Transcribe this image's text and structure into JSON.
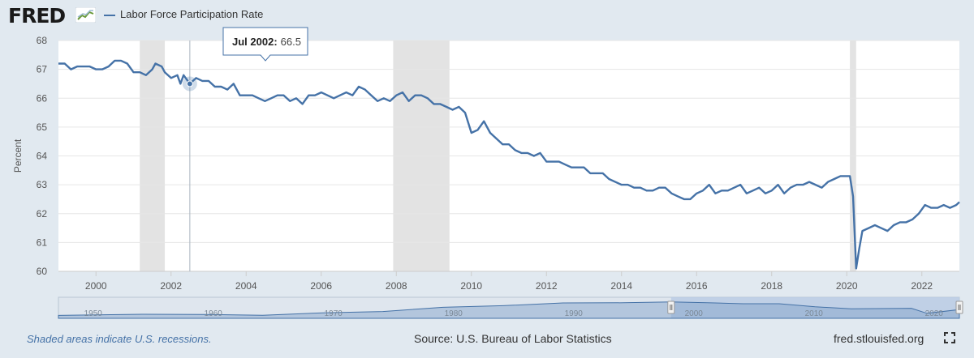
{
  "header": {
    "logo_text": "FRED",
    "legend_label": "Labor Force Participation Rate",
    "series_color": "#4572a7"
  },
  "tooltip": {
    "date": "Jul 2002:",
    "value": "66.5"
  },
  "footer": {
    "note": "Shaded areas indicate U.S. recessions.",
    "source": "Source: U.S. Bureau of Labor Statistics",
    "site": "fred.stlouisfed.org"
  },
  "chart_data": {
    "type": "line",
    "title": "",
    "xlabel": "",
    "ylabel": "Percent",
    "ylim": [
      60,
      68
    ],
    "xlim": [
      "1999-01",
      "2023-01"
    ],
    "yticks": [
      60,
      61,
      62,
      63,
      64,
      65,
      66,
      67,
      68
    ],
    "xticks": [
      "2000",
      "2002",
      "2004",
      "2006",
      "2008",
      "2010",
      "2012",
      "2014",
      "2016",
      "2018",
      "2020",
      "2022"
    ],
    "grid": "horizontal",
    "recessions": [
      [
        "2001-03",
        "2001-11"
      ],
      [
        "2007-12",
        "2009-06"
      ],
      [
        "2020-02",
        "2020-04"
      ]
    ],
    "highlight": {
      "x": "2002-07",
      "y": 66.5
    },
    "series": [
      {
        "name": "Labor Force Participation Rate",
        "color": "#4572a7",
        "points": [
          [
            "1999-01",
            67.2
          ],
          [
            "1999-03",
            67.2
          ],
          [
            "1999-05",
            67.0
          ],
          [
            "1999-07",
            67.1
          ],
          [
            "1999-09",
            67.1
          ],
          [
            "1999-11",
            67.1
          ],
          [
            "2000-01",
            67.0
          ],
          [
            "2000-03",
            67.0
          ],
          [
            "2000-05",
            67.1
          ],
          [
            "2000-07",
            67.3
          ],
          [
            "2000-09",
            67.3
          ],
          [
            "2000-11",
            67.2
          ],
          [
            "2001-01",
            66.9
          ],
          [
            "2001-03",
            66.9
          ],
          [
            "2001-05",
            66.8
          ],
          [
            "2001-07",
            67.0
          ],
          [
            "2001-08",
            67.2
          ],
          [
            "2001-10",
            67.1
          ],
          [
            "2001-11",
            66.9
          ],
          [
            "2002-01",
            66.7
          ],
          [
            "2002-03",
            66.8
          ],
          [
            "2002-04",
            66.5
          ],
          [
            "2002-05",
            66.8
          ],
          [
            "2002-07",
            66.5
          ],
          [
            "2002-09",
            66.7
          ],
          [
            "2002-11",
            66.6
          ],
          [
            "2003-01",
            66.6
          ],
          [
            "2003-03",
            66.4
          ],
          [
            "2003-05",
            66.4
          ],
          [
            "2003-07",
            66.3
          ],
          [
            "2003-09",
            66.5
          ],
          [
            "2003-11",
            66.1
          ],
          [
            "2004-01",
            66.1
          ],
          [
            "2004-03",
            66.1
          ],
          [
            "2004-05",
            66.0
          ],
          [
            "2004-07",
            65.9
          ],
          [
            "2004-09",
            66.0
          ],
          [
            "2004-11",
            66.1
          ],
          [
            "2005-01",
            66.1
          ],
          [
            "2005-03",
            65.9
          ],
          [
            "2005-05",
            66.0
          ],
          [
            "2005-07",
            65.8
          ],
          [
            "2005-09",
            66.1
          ],
          [
            "2005-11",
            66.1
          ],
          [
            "2006-01",
            66.2
          ],
          [
            "2006-03",
            66.1
          ],
          [
            "2006-05",
            66.0
          ],
          [
            "2006-07",
            66.1
          ],
          [
            "2006-09",
            66.2
          ],
          [
            "2006-11",
            66.1
          ],
          [
            "2007-01",
            66.4
          ],
          [
            "2007-03",
            66.3
          ],
          [
            "2007-05",
            66.1
          ],
          [
            "2007-07",
            65.9
          ],
          [
            "2007-09",
            66.0
          ],
          [
            "2007-11",
            65.9
          ],
          [
            "2008-01",
            66.1
          ],
          [
            "2008-03",
            66.2
          ],
          [
            "2008-05",
            65.9
          ],
          [
            "2008-07",
            66.1
          ],
          [
            "2008-09",
            66.1
          ],
          [
            "2008-11",
            66.0
          ],
          [
            "2009-01",
            65.8
          ],
          [
            "2009-03",
            65.8
          ],
          [
            "2009-05",
            65.7
          ],
          [
            "2009-07",
            65.6
          ],
          [
            "2009-09",
            65.7
          ],
          [
            "2009-11",
            65.5
          ],
          [
            "2010-01",
            64.8
          ],
          [
            "2010-03",
            64.9
          ],
          [
            "2010-05",
            65.2
          ],
          [
            "2010-07",
            64.8
          ],
          [
            "2010-09",
            64.6
          ],
          [
            "2010-11",
            64.4
          ],
          [
            "2011-01",
            64.4
          ],
          [
            "2011-03",
            64.2
          ],
          [
            "2011-05",
            64.1
          ],
          [
            "2011-07",
            64.1
          ],
          [
            "2011-09",
            64.0
          ],
          [
            "2011-11",
            64.1
          ],
          [
            "2012-01",
            63.8
          ],
          [
            "2012-03",
            63.8
          ],
          [
            "2012-05",
            63.8
          ],
          [
            "2012-07",
            63.7
          ],
          [
            "2012-09",
            63.6
          ],
          [
            "2012-11",
            63.6
          ],
          [
            "2013-01",
            63.6
          ],
          [
            "2013-03",
            63.4
          ],
          [
            "2013-05",
            63.4
          ],
          [
            "2013-07",
            63.4
          ],
          [
            "2013-09",
            63.2
          ],
          [
            "2013-11",
            63.1
          ],
          [
            "2014-01",
            63.0
          ],
          [
            "2014-03",
            63.0
          ],
          [
            "2014-05",
            62.9
          ],
          [
            "2014-07",
            62.9
          ],
          [
            "2014-09",
            62.8
          ],
          [
            "2014-11",
            62.8
          ],
          [
            "2015-01",
            62.9
          ],
          [
            "2015-03",
            62.9
          ],
          [
            "2015-05",
            62.7
          ],
          [
            "2015-07",
            62.6
          ],
          [
            "2015-09",
            62.5
          ],
          [
            "2015-11",
            62.5
          ],
          [
            "2016-01",
            62.7
          ],
          [
            "2016-03",
            62.8
          ],
          [
            "2016-05",
            63.0
          ],
          [
            "2016-07",
            62.7
          ],
          [
            "2016-09",
            62.8
          ],
          [
            "2016-11",
            62.8
          ],
          [
            "2017-01",
            62.9
          ],
          [
            "2017-03",
            63.0
          ],
          [
            "2017-05",
            62.7
          ],
          [
            "2017-07",
            62.8
          ],
          [
            "2017-09",
            62.9
          ],
          [
            "2017-11",
            62.7
          ],
          [
            "2018-01",
            62.8
          ],
          [
            "2018-03",
            63.0
          ],
          [
            "2018-05",
            62.7
          ],
          [
            "2018-07",
            62.9
          ],
          [
            "2018-09",
            63.0
          ],
          [
            "2018-11",
            63.0
          ],
          [
            "2019-01",
            63.1
          ],
          [
            "2019-03",
            63.0
          ],
          [
            "2019-05",
            62.9
          ],
          [
            "2019-07",
            63.1
          ],
          [
            "2019-09",
            63.2
          ],
          [
            "2019-11",
            63.3
          ],
          [
            "2020-01",
            63.3
          ],
          [
            "2020-02",
            63.3
          ],
          [
            "2020-03",
            62.6
          ],
          [
            "2020-04",
            60.1
          ],
          [
            "2020-05",
            60.8
          ],
          [
            "2020-06",
            61.4
          ],
          [
            "2020-08",
            61.5
          ],
          [
            "2020-10",
            61.6
          ],
          [
            "2020-12",
            61.5
          ],
          [
            "2021-02",
            61.4
          ],
          [
            "2021-04",
            61.6
          ],
          [
            "2021-06",
            61.7
          ],
          [
            "2021-08",
            61.7
          ],
          [
            "2021-10",
            61.8
          ],
          [
            "2021-12",
            62.0
          ],
          [
            "2022-02",
            62.3
          ],
          [
            "2022-04",
            62.2
          ],
          [
            "2022-06",
            62.2
          ],
          [
            "2022-08",
            62.3
          ],
          [
            "2022-10",
            62.2
          ],
          [
            "2022-12",
            62.3
          ],
          [
            "2023-01",
            62.4
          ]
        ]
      }
    ],
    "navigator": {
      "xlim": [
        "1948-01",
        "2023-01"
      ],
      "xticks": [
        "1950",
        "1960",
        "1970",
        "1980",
        "1990",
        "2000",
        "2010",
        "2020"
      ],
      "selection": [
        "1999-01",
        "2023-01"
      ]
    }
  }
}
